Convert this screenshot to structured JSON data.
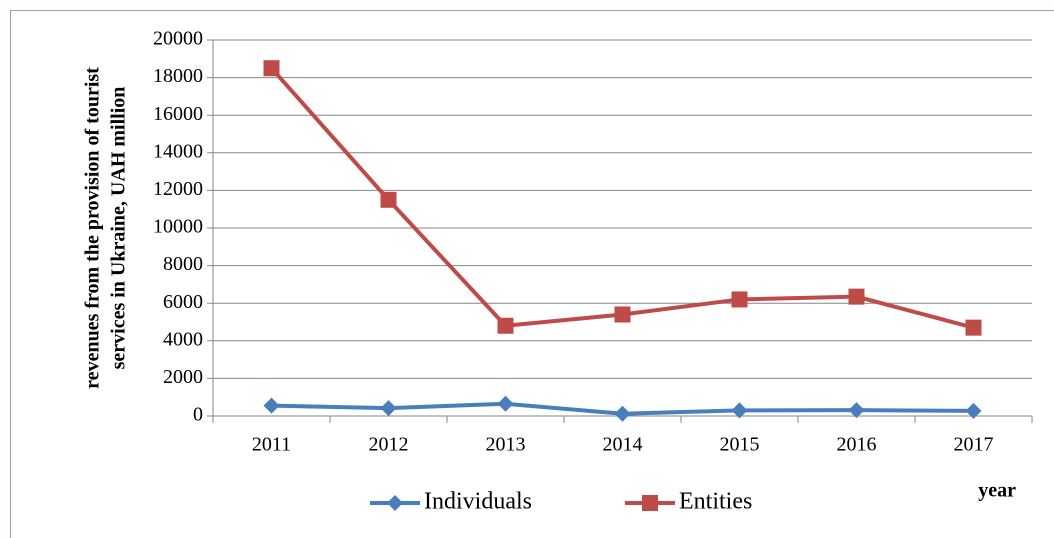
{
  "chart_data": {
    "type": "line",
    "ylabel": [
      "revenues from the provision of tourist",
      "services in Ukraine, UAH million"
    ],
    "xlabel": "year",
    "categories": [
      "2011",
      "2012",
      "2013",
      "2014",
      "2015",
      "2016",
      "2017"
    ],
    "series": [
      {
        "name": "Individuals",
        "color": "#4a7ebb",
        "marker": "diamond",
        "values": [
          550,
          420,
          650,
          120,
          300,
          310,
          270
        ]
      },
      {
        "name": "Entities",
        "color": "#be4b48",
        "marker": "square",
        "values": [
          18500,
          11500,
          4800,
          5400,
          6200,
          6350,
          4700
        ]
      }
    ],
    "ylim": [
      0,
      20000
    ],
    "yticks": [
      0,
      2000,
      4000,
      6000,
      8000,
      10000,
      12000,
      14000,
      16000,
      18000,
      20000
    ],
    "grid": true,
    "legend": "bottom"
  }
}
